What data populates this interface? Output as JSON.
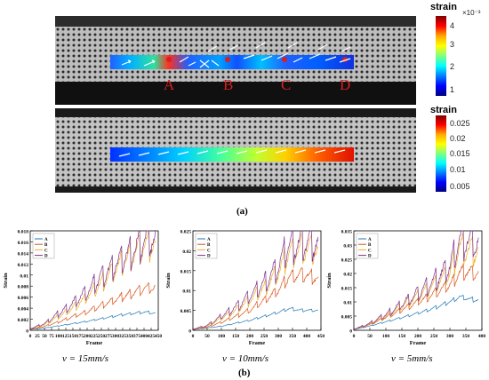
{
  "panel_a": {
    "top": {
      "colorbar_title": "strain",
      "colorbar_exponent": "×10⁻³",
      "colorbar_ticks": [
        "4",
        "3",
        "2",
        "1"
      ],
      "point_labels": [
        "A",
        "B",
        "C",
        "D"
      ]
    },
    "bottom": {
      "colorbar_title": "strain",
      "colorbar_ticks": [
        "0.025",
        "0.02",
        "0.015",
        "0.01",
        "0.005"
      ]
    },
    "caption": "(a)"
  },
  "panel_b": {
    "caption": "(b)",
    "speed_labels": [
      "v = 15mm/s",
      "v = 10mm/s",
      "v = 5mm/s"
    ]
  },
  "colors": {
    "A": "#1f77b4",
    "B": "#d95319",
    "C": "#edb120",
    "D": "#7e2f8e",
    "point_marker": "#d62020"
  },
  "chart_data": [
    {
      "type": "line",
      "xlabel": "Frame",
      "ylabel": "Strain",
      "xlim": [
        0,
        450
      ],
      "ylim": [
        0,
        0.018
      ],
      "xticks": [
        "0",
        "25",
        "50",
        "75",
        "100",
        "125",
        "150",
        "175",
        "200",
        "225",
        "250",
        "275",
        "300",
        "325",
        "350",
        "375",
        "400",
        "425",
        "450"
      ],
      "yticks": [
        "0",
        "0.002",
        "0.004",
        "0.006",
        "0.008",
        "0.01",
        "0.012",
        "0.014",
        "0.016",
        "0.018"
      ],
      "legend": "top-left",
      "series": [
        {
          "name": "A",
          "x": [
            0,
            50,
            100,
            150,
            200,
            250,
            300,
            350,
            400,
            440
          ],
          "y": [
            0.0002,
            0.0004,
            0.0008,
            0.0012,
            0.0016,
            0.0021,
            0.0026,
            0.003,
            0.0033,
            0.0031
          ]
        },
        {
          "name": "B",
          "x": [
            0,
            50,
            100,
            150,
            200,
            250,
            300,
            350,
            400,
            440
          ],
          "y": [
            0.0002,
            0.0007,
            0.0015,
            0.0025,
            0.0033,
            0.0045,
            0.0055,
            0.0066,
            0.0075,
            0.0077
          ]
        },
        {
          "name": "C",
          "x": [
            0,
            50,
            100,
            150,
            200,
            250,
            300,
            350,
            400,
            440
          ],
          "y": [
            0.0003,
            0.001,
            0.0025,
            0.004,
            0.006,
            0.0085,
            0.011,
            0.0135,
            0.0155,
            0.0155
          ]
        },
        {
          "name": "D",
          "x": [
            0,
            50,
            100,
            150,
            200,
            250,
            300,
            350,
            400,
            440
          ],
          "y": [
            0.0003,
            0.0012,
            0.003,
            0.0048,
            0.007,
            0.0095,
            0.012,
            0.014,
            0.0162,
            0.0165
          ]
        }
      ]
    },
    {
      "type": "line",
      "xlabel": "Frame",
      "ylabel": "Strain",
      "xlim": [
        0,
        450
      ],
      "ylim": [
        0,
        0.025
      ],
      "xticks": [
        "0",
        "50",
        "100",
        "150",
        "200",
        "250",
        "300",
        "350",
        "400",
        "450"
      ],
      "yticks": [
        "0",
        "0.005",
        "0.01",
        "0.015",
        "0.02",
        "0.025"
      ],
      "legend": "top-left",
      "series": [
        {
          "name": "A",
          "x": [
            0,
            50,
            100,
            150,
            200,
            250,
            300,
            340,
            380,
            440
          ],
          "y": [
            0.0002,
            0.0006,
            0.001,
            0.0018,
            0.0025,
            0.0035,
            0.0045,
            0.0055,
            0.005,
            0.005
          ]
        },
        {
          "name": "B",
          "x": [
            0,
            50,
            100,
            150,
            200,
            250,
            300,
            340,
            380,
            440
          ],
          "y": [
            0.0002,
            0.0008,
            0.002,
            0.0035,
            0.005,
            0.0075,
            0.01,
            0.0135,
            0.014,
            0.013
          ]
        },
        {
          "name": "C",
          "x": [
            0,
            50,
            100,
            150,
            200,
            250,
            300,
            340,
            380,
            440
          ],
          "y": [
            0.0003,
            0.001,
            0.003,
            0.005,
            0.0075,
            0.0105,
            0.0145,
            0.0195,
            0.0205,
            0.02
          ]
        },
        {
          "name": "D",
          "x": [
            0,
            50,
            100,
            150,
            200,
            250,
            300,
            340,
            380,
            440
          ],
          "y": [
            0.0003,
            0.0012,
            0.0035,
            0.0058,
            0.0085,
            0.0118,
            0.016,
            0.0215,
            0.022,
            0.0218
          ]
        }
      ]
    },
    {
      "type": "line",
      "xlabel": "Frame",
      "ylabel": "Strain",
      "xlim": [
        0,
        400
      ],
      "ylim": [
        0,
        0.035
      ],
      "xticks": [
        "0",
        "50",
        "100",
        "150",
        "200",
        "250",
        "300",
        "350",
        "400"
      ],
      "yticks": [
        "0",
        "0.005",
        "0.01",
        "0.015",
        "0.02",
        "0.025",
        "0.03",
        "0.035"
      ],
      "legend": "top-left",
      "series": [
        {
          "name": "A",
          "x": [
            0,
            50,
            100,
            150,
            200,
            250,
            300,
            330,
            360,
            390
          ],
          "y": [
            0.0003,
            0.0015,
            0.003,
            0.0045,
            0.006,
            0.0078,
            0.01,
            0.0118,
            0.011,
            0.0105
          ]
        },
        {
          "name": "B",
          "x": [
            0,
            50,
            100,
            150,
            200,
            250,
            300,
            330,
            360,
            390
          ],
          "y": [
            0.0003,
            0.002,
            0.0045,
            0.0072,
            0.0098,
            0.0128,
            0.016,
            0.0205,
            0.0205,
            0.0198
          ]
        },
        {
          "name": "C",
          "x": [
            0,
            50,
            100,
            150,
            200,
            250,
            300,
            330,
            360,
            390
          ],
          "y": [
            0.0004,
            0.0022,
            0.005,
            0.0085,
            0.0118,
            0.0158,
            0.02,
            0.0292,
            0.028,
            0.0275
          ]
        },
        {
          "name": "D",
          "x": [
            0,
            50,
            100,
            150,
            200,
            250,
            300,
            330,
            360,
            390
          ],
          "y": [
            0.0004,
            0.0024,
            0.0055,
            0.0092,
            0.0128,
            0.0172,
            0.0225,
            0.0325,
            0.031,
            0.0305
          ]
        }
      ]
    }
  ]
}
